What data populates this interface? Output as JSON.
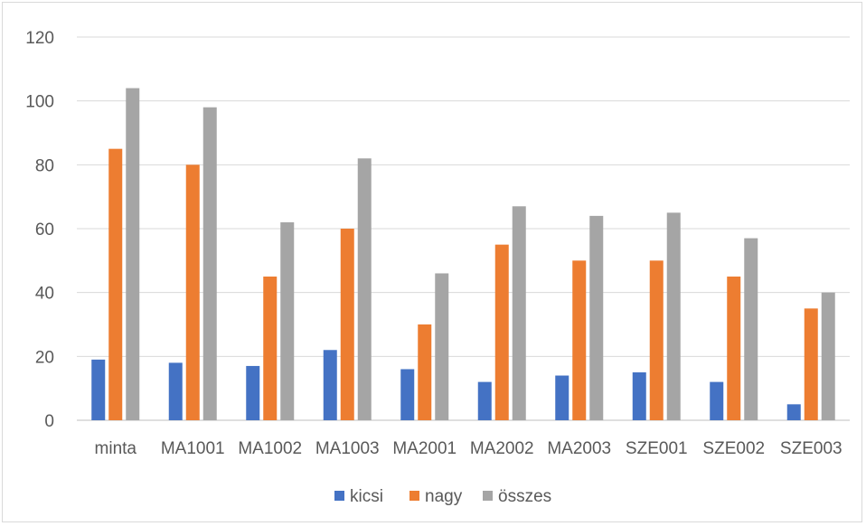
{
  "chart_data": {
    "type": "bar",
    "categories": [
      "minta",
      "MA1001",
      "MA1002",
      "MA1003",
      "MA2001",
      "MA2002",
      "MA2003",
      "SZE001",
      "SZE002",
      "SZE003"
    ],
    "series": [
      {
        "name": "kicsi",
        "color": "#4472c4",
        "values": [
          19,
          18,
          17,
          22,
          16,
          12,
          14,
          15,
          12,
          5
        ]
      },
      {
        "name": "nagy",
        "color": "#ed7d31",
        "values": [
          85,
          80,
          45,
          60,
          30,
          55,
          50,
          50,
          45,
          35
        ]
      },
      {
        "name": "összes",
        "color": "#a5a5a5",
        "values": [
          104,
          98,
          62,
          82,
          46,
          67,
          64,
          65,
          57,
          40
        ]
      }
    ],
    "ylim": [
      0,
      120
    ],
    "yticks": [
      "0",
      "20",
      "40",
      "60",
      "80",
      "100",
      "120"
    ],
    "grid": true,
    "legend_position": "bottom"
  }
}
